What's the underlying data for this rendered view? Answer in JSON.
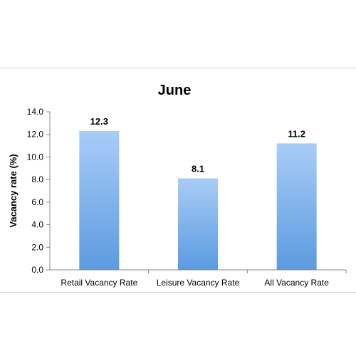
{
  "chart_data": {
    "type": "bar",
    "title": "June",
    "xlabel": "",
    "ylabel": "Vacancy rate (%)",
    "ylim": [
      0,
      14
    ],
    "yticks": [
      "0.0",
      "2.0",
      "4.0",
      "6.0",
      "8.0",
      "10.0",
      "12.0",
      "14.0"
    ],
    "categories": [
      "Retail Vacancy Rate",
      "Leisure Vacancy Rate",
      "All Vacancy Rate"
    ],
    "values": [
      12.3,
      8.1,
      11.2
    ],
    "data_labels": [
      "12.3",
      "8.1",
      "11.2"
    ],
    "grid": false,
    "colors": {
      "bar_top": "#a9ccf7",
      "bar_bottom": "#5b9be0",
      "axis": "#8a8a8a",
      "frame": "#c9c9c9"
    }
  }
}
